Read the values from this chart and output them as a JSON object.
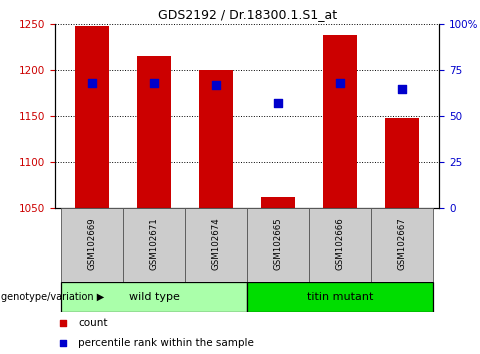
{
  "title": "GDS2192 / Dr.18300.1.S1_at",
  "samples": [
    "GSM102669",
    "GSM102671",
    "GSM102674",
    "GSM102665",
    "GSM102666",
    "GSM102667"
  ],
  "bar_values": [
    1248,
    1215,
    1200,
    1062,
    1238,
    1148
  ],
  "bar_base": 1050,
  "percentile_values": [
    68,
    68,
    67,
    57,
    68,
    65
  ],
  "bar_color": "#cc0000",
  "dot_color": "#0000cc",
  "ylim_left": [
    1050,
    1250
  ],
  "ylim_right": [
    0,
    100
  ],
  "yticks_left": [
    1050,
    1100,
    1150,
    1200,
    1250
  ],
  "yticks_right": [
    0,
    25,
    50,
    75,
    100
  ],
  "groups": [
    {
      "label": "wild type",
      "span": [
        0,
        2
      ],
      "color": "#aaffaa"
    },
    {
      "label": "titin mutant",
      "span": [
        3,
        5
      ],
      "color": "#00dd00"
    }
  ],
  "group_label_prefix": "genotype/variation",
  "legend_count_label": "count",
  "legend_percentile_label": "percentile rank within the sample",
  "bar_width": 0.55,
  "tick_color_left": "#cc0000",
  "tick_color_right": "#0000cc",
  "sample_box_color": "#cccccc",
  "sample_box_edge": "#555555"
}
